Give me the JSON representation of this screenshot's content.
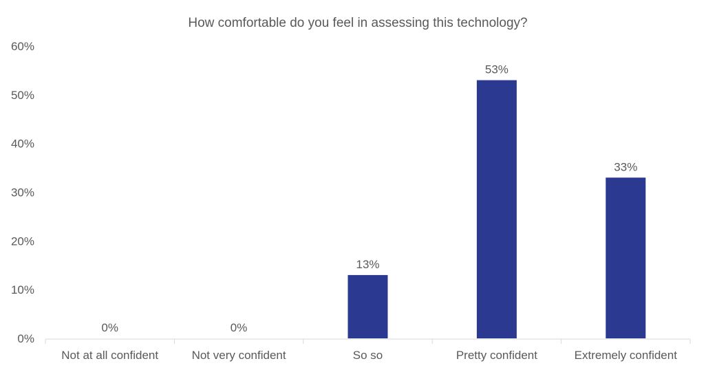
{
  "chart_data": {
    "type": "bar",
    "title": "How comfortable do you feel in assessing this technology?",
    "categories": [
      "Not at all confident",
      "Not very confident",
      "So so",
      "Pretty confident",
      "Extremely confident"
    ],
    "values": [
      0,
      0,
      13,
      53,
      33
    ],
    "data_labels": [
      "0%",
      "0%",
      "13%",
      "53%",
      "33%"
    ],
    "ylim": [
      0,
      60
    ],
    "yticks": [
      "0%",
      "10%",
      "20%",
      "30%",
      "40%",
      "50%",
      "60%"
    ],
    "xlabel": "",
    "ylabel": "",
    "grid": false,
    "legend": "none",
    "bar_color": "#2B3990",
    "text_color": "#595959"
  }
}
